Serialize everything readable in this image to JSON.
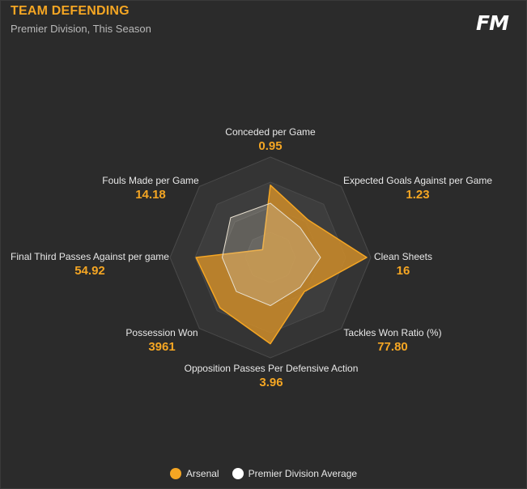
{
  "header": {
    "title": "TEAM DEFENDING",
    "subtitle": "Premier Division, This Season",
    "logo": "FM"
  },
  "colors": {
    "accent": "#f5a623",
    "team_fill": "#c98a2a",
    "average_fill": "#d9d0c0",
    "background": "#2b2b2b"
  },
  "chart_data": {
    "type": "radar",
    "axes": [
      "Conceded per Game",
      "Expected Goals Against per Game",
      "Clean Sheets",
      "Tackles Won Ratio (%)",
      "Opposition Passes Per Defensive Action",
      "Possession Won",
      "Final Third Passes Against per game",
      "Fouls Made per Game"
    ],
    "value_labels": [
      "0.95",
      "1.23",
      "16",
      "77.80",
      "3.96",
      "3961",
      "54.92",
      "14.18"
    ],
    "series": [
      {
        "name": "Arsenal",
        "color": "#f5a623",
        "normalized": [
          0.72,
          0.53,
          0.96,
          0.48,
          0.86,
          0.71,
          0.74,
          0.11
        ]
      },
      {
        "name": "Premier Division Average",
        "color": "#ffffff",
        "normalized": [
          0.54,
          0.42,
          0.5,
          0.42,
          0.48,
          0.48,
          0.48,
          0.56
        ]
      }
    ],
    "grid_rings": 4,
    "legend_position": "bottom"
  }
}
